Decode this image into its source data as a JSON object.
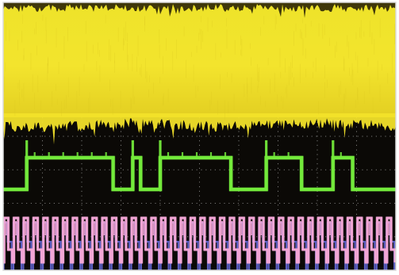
{
  "colors": {
    "background": "#0b0906",
    "frame": "#ffffff",
    "grid_dots": "#cfcfcf",
    "channel1_yellow": "#f2e22a",
    "channel1_dark_edge": "#2b2407",
    "channel2_green": "#73ea3a",
    "channel3_pink": "#f2a6d6",
    "channel3_blue": "#6a6ee6"
  },
  "icons": {
    "channel1": "noise-band-waveform",
    "channel2": "square-pulse-waveform",
    "channel3": "clock-waveform"
  },
  "traces": {
    "channel1": {
      "kind": "noise-band",
      "fill_level": 1.0,
      "description_free": true
    },
    "channel2": {
      "kind": "digital",
      "levels": [
        "high",
        "low"
      ],
      "pattern": [
        [
          "low",
          0.0
        ],
        [
          "high",
          0.06
        ],
        [
          "low",
          0.28
        ],
        [
          "high",
          0.33
        ],
        [
          "low",
          0.35
        ],
        [
          "high",
          0.4
        ],
        [
          "low",
          0.58
        ],
        [
          "high",
          0.67
        ],
        [
          "low",
          0.76
        ],
        [
          "high",
          0.84
        ],
        [
          "low",
          0.89
        ],
        [
          "low",
          1.0
        ]
      ]
    },
    "channel3": {
      "kind": "clock",
      "cycles": 40
    }
  }
}
